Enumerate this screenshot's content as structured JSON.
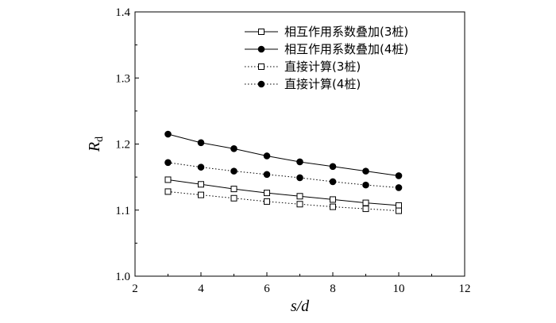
{
  "chart_data": {
    "type": "line",
    "title": "",
    "xlabel": {
      "text": "s/d"
    },
    "ylabel": {
      "main": "R",
      "sub": "d"
    },
    "xlim": [
      2,
      12
    ],
    "ylim": [
      1.0,
      1.4
    ],
    "xticks": [
      2,
      4,
      6,
      8,
      10,
      12
    ],
    "yticks": [
      1.0,
      1.1,
      1.2,
      1.3,
      1.4
    ],
    "xtick_labels": [
      "2",
      "4",
      "6",
      "8",
      "10",
      "12"
    ],
    "ytick_labels": [
      "1.0",
      "1.1",
      "1.2",
      "1.3",
      "1.4"
    ],
    "grid": false,
    "legend_position": "top-right",
    "x": [
      3,
      4,
      5,
      6,
      7,
      8,
      9,
      10
    ],
    "series": [
      {
        "name": "相互作用系数叠加(3桩)",
        "line": "solid",
        "marker": "open-square",
        "values": [
          1.146,
          1.139,
          1.132,
          1.126,
          1.121,
          1.116,
          1.111,
          1.107
        ]
      },
      {
        "name": "相互作用系数叠加(4桩)",
        "line": "solid",
        "marker": "filled-circle",
        "values": [
          1.215,
          1.202,
          1.193,
          1.182,
          1.173,
          1.166,
          1.159,
          1.152
        ]
      },
      {
        "name": "直接计算(3桩)",
        "line": "dotted",
        "marker": "open-square",
        "values": [
          1.128,
          1.123,
          1.118,
          1.113,
          1.109,
          1.105,
          1.102,
          1.099
        ]
      },
      {
        "name": "直接计算(4桩)",
        "line": "dotted",
        "marker": "filled-circle",
        "values": [
          1.172,
          1.165,
          1.159,
          1.154,
          1.149,
          1.143,
          1.138,
          1.134
        ]
      }
    ]
  }
}
